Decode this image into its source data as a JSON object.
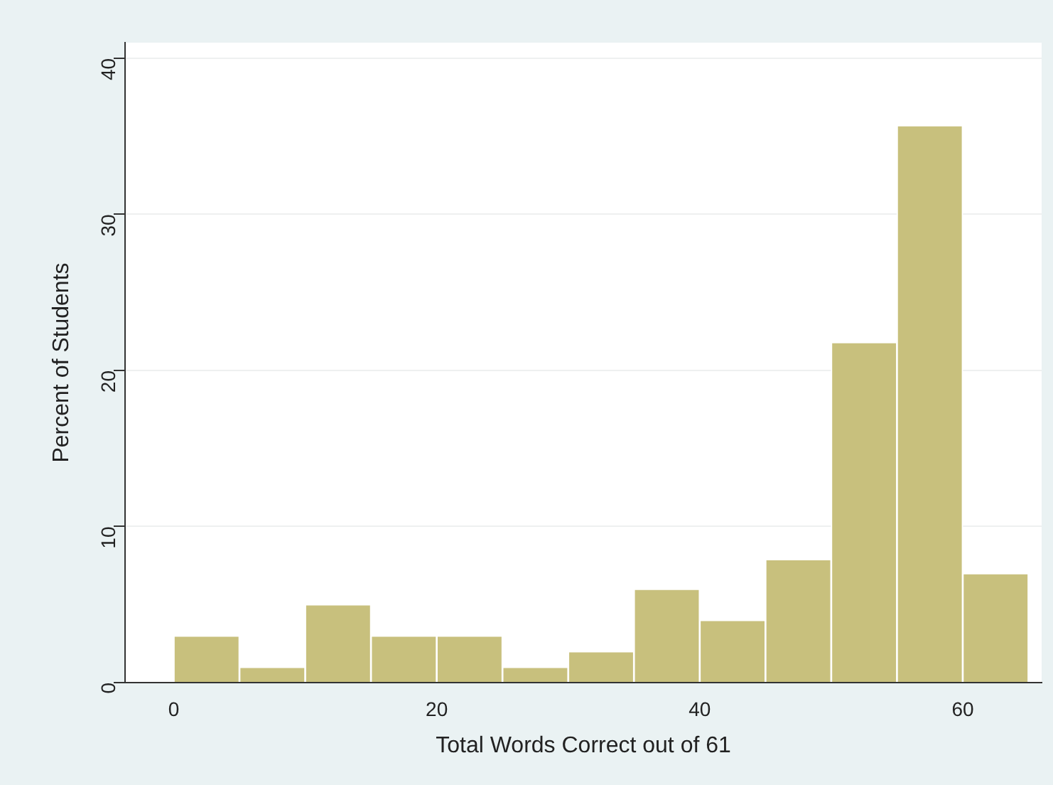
{
  "chart_data": {
    "type": "histogram",
    "xlabel": "Total Words Correct out of 61",
    "ylabel": "Percent of Students",
    "bins": [
      0,
      5,
      10,
      15,
      20,
      25,
      30,
      35,
      40,
      45,
      50,
      55,
      60,
      65
    ],
    "values": [
      3,
      1,
      5,
      3,
      3,
      1,
      2,
      6,
      4,
      7.9,
      21.8,
      35.7,
      7
    ],
    "color": "#c8c07d",
    "xlim": [
      -3.7,
      66
    ],
    "xticks": [
      0,
      20,
      40,
      60
    ],
    "ylim": [
      0,
      41
    ],
    "yticks": [
      0,
      10,
      20,
      30,
      40
    ],
    "grid": "y",
    "legend": false
  }
}
